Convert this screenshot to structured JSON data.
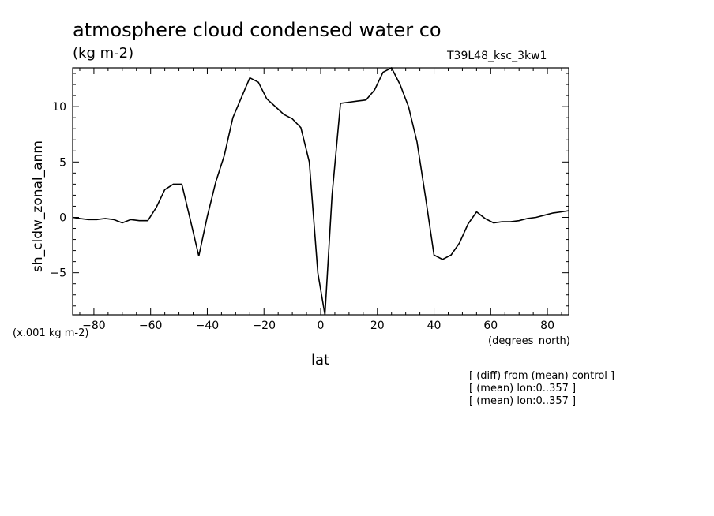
{
  "header": {
    "title": "atmosphere cloud condensed water co",
    "units": "(kg m-2)",
    "run_id": "T39L48_ksc_3kw1"
  },
  "footer": {
    "scale_note": "(x.001 kg m-2)",
    "x_units": "(degrees_north)",
    "notes": [
      "[ (diff) from (mean) control ]",
      "[ (mean) lon:0..357 ]",
      "[ (mean) lon:0..357 ]"
    ]
  },
  "chart_data": {
    "type": "line",
    "title": "atmosphere cloud condensed water co",
    "xlabel": "lat",
    "ylabel": "sh_cldw_zonal_anm",
    "xlim": [
      -87.5,
      87.5
    ],
    "ylim": [
      -8.8,
      13.5
    ],
    "xticks": [
      -80,
      -60,
      -40,
      -20,
      0,
      20,
      40,
      60,
      80
    ],
    "yticks": [
      -5,
      0,
      5,
      10
    ],
    "grid": false,
    "series": [
      {
        "color": "#000000",
        "x": [
          -87.5,
          -85,
          -82,
          -79,
          -76,
          -73,
          -70,
          -67,
          -64,
          -61,
          -58,
          -55,
          -52,
          -49,
          -46,
          -43,
          -40,
          -37,
          -34,
          -31,
          -28,
          -25,
          -22,
          -19,
          -16,
          -13,
          -10,
          -7,
          -4,
          -1,
          1.5,
          4,
          7,
          10,
          13,
          16,
          19,
          22,
          25,
          28,
          31,
          34,
          37,
          40,
          43,
          46,
          49,
          52,
          55,
          58,
          61,
          64,
          67,
          70,
          73,
          76,
          79,
          82,
          85,
          87.5
        ],
        "y": [
          0,
          -0.1,
          -0.2,
          -0.2,
          -0.1,
          -0.2,
          -0.5,
          -0.2,
          -0.3,
          -0.3,
          0.9,
          2.5,
          3.0,
          3.0,
          -0.2,
          -3.5,
          0.1,
          3.2,
          5.6,
          9.0,
          10.8,
          12.6,
          12.2,
          10.7,
          10.0,
          9.3,
          8.9,
          8.1,
          5.0,
          -5.0,
          -8.8,
          2.0,
          10.3,
          10.4,
          10.5,
          10.6,
          11.5,
          13.1,
          13.5,
          12.0,
          10.0,
          6.8,
          1.8,
          -3.4,
          -3.8,
          -3.4,
          -2.3,
          -0.6,
          0.5,
          -0.1,
          -0.5,
          -0.4,
          -0.4,
          -0.3,
          -0.1,
          0.0,
          0.2,
          0.4,
          0.5,
          0.6
        ]
      }
    ]
  }
}
